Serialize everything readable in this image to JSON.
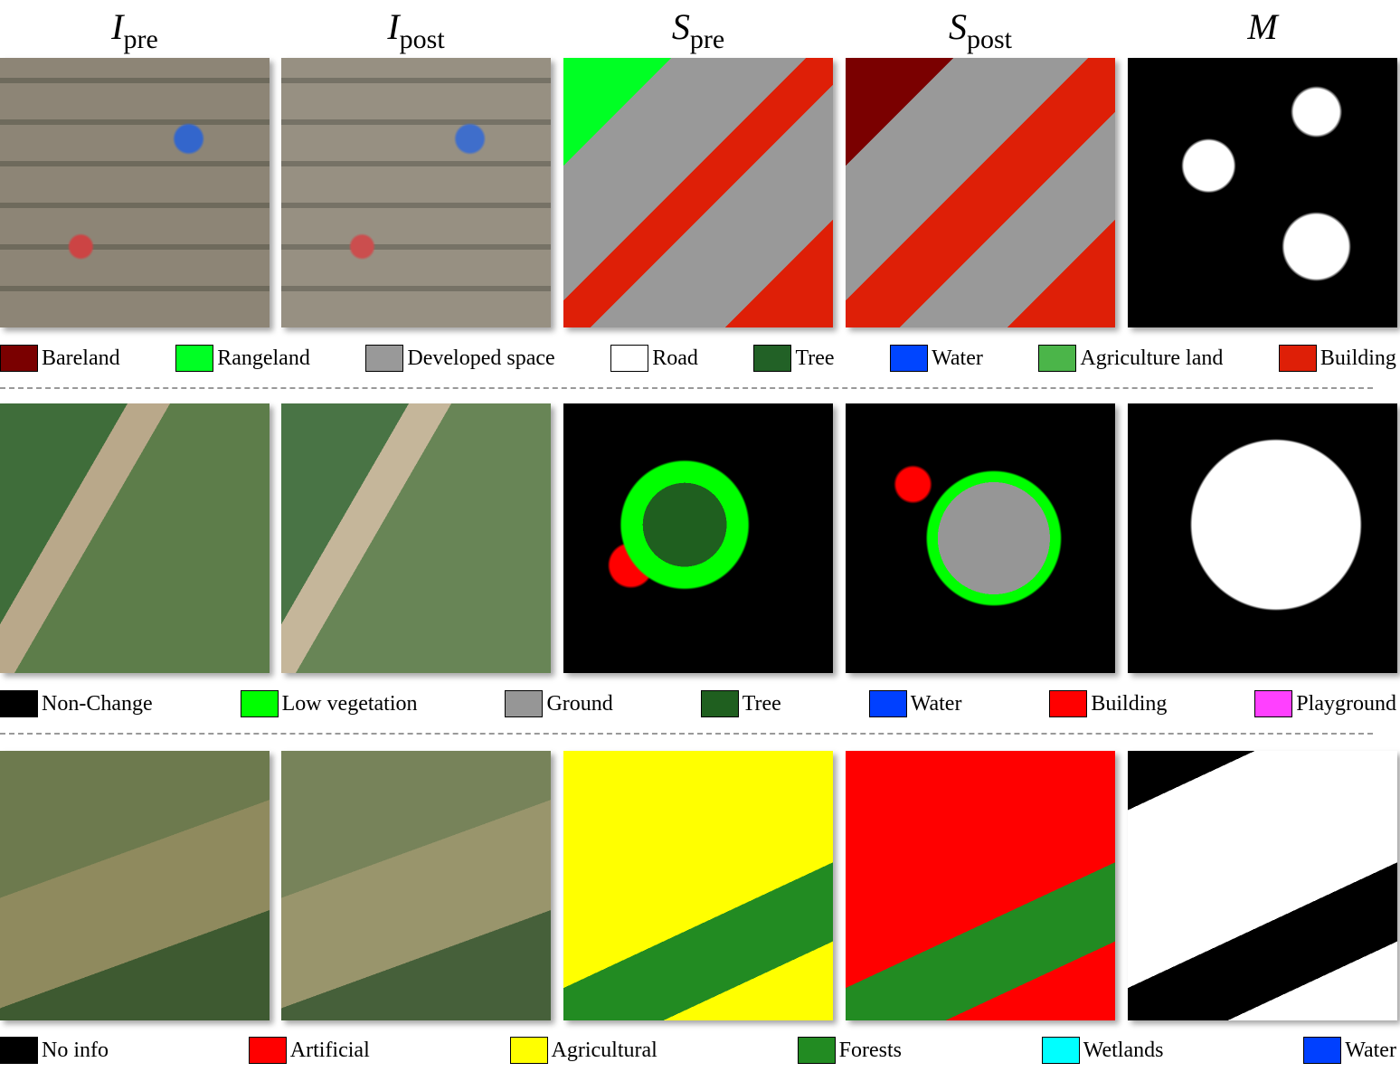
{
  "columns": [
    {
      "symbol": "I",
      "sub": "pre"
    },
    {
      "symbol": "I",
      "sub": "post"
    },
    {
      "symbol": "S",
      "sub": "pre"
    },
    {
      "symbol": "S",
      "sub": "post"
    },
    {
      "symbol": "M"
    }
  ],
  "legends": [
    [
      {
        "label": "Bareland",
        "color": "#7a0000"
      },
      {
        "label": "Rangeland",
        "color": "#00ff24"
      },
      {
        "label": "Developed space",
        "color": "#999999"
      },
      {
        "label": "Road",
        "color": "#ffffff"
      },
      {
        "label": "Tree",
        "color": "#226126"
      },
      {
        "label": "Water",
        "color": "#0045ff"
      },
      {
        "label": "Agriculture land",
        "color": "#4bb549"
      },
      {
        "label": "Building",
        "color": "#de1f07"
      }
    ],
    [
      {
        "label": "Non-Change",
        "color": "#000000"
      },
      {
        "label": "Low vegetation",
        "color": "#00ff00"
      },
      {
        "label": "Ground",
        "color": "#969696"
      },
      {
        "label": "Tree",
        "color": "#1f5f1f"
      },
      {
        "label": "Water",
        "color": "#0040ff"
      },
      {
        "label": "Building",
        "color": "#ff0000"
      },
      {
        "label": "Playground",
        "color": "#ff40ff"
      }
    ],
    [
      {
        "label": "No info",
        "color": "#000000"
      },
      {
        "label": "Artificial",
        "color": "#ff0000"
      },
      {
        "label": "Agricultural",
        "color": "#ffff00"
      },
      {
        "label": "Forests",
        "color": "#228b22"
      },
      {
        "label": "Wetlands",
        "color": "#00ffff"
      },
      {
        "label": "Water",
        "color": "#0040ff"
      }
    ]
  ]
}
